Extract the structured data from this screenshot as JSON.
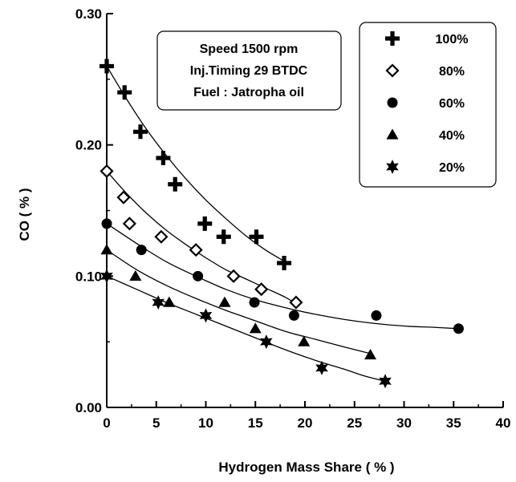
{
  "chart_data": {
    "type": "scatter",
    "xlabel": "Hydrogen Mass Share ( % )",
    "ylabel": "CO ( % )",
    "xlim": [
      0,
      40
    ],
    "ylim": [
      0,
      0.3
    ],
    "x_ticks": [
      "0",
      "5",
      "10",
      "15",
      "20",
      "25",
      "30",
      "35",
      "40"
    ],
    "y_ticks": [
      "0.00",
      "0.10",
      "0.20",
      "0.30"
    ],
    "grid": false,
    "legend_position": "top-right",
    "annotation_lines": [
      "Speed 1500 rpm",
      "Inj.Timing 29 BTDC",
      "Fuel : Jatropha oil"
    ],
    "series": [
      {
        "name": "100%",
        "marker": "plus",
        "x": [
          0,
          1.8,
          3.4,
          5.7,
          6.9,
          9.9,
          11.8,
          15.1,
          17.9
        ],
        "y": [
          0.26,
          0.24,
          0.21,
          0.19,
          0.17,
          0.14,
          0.13,
          0.13,
          0.11
        ],
        "fit": [
          [
            0,
            0.26
          ],
          [
            2,
            0.235
          ],
          [
            4,
            0.212
          ],
          [
            6,
            0.192
          ],
          [
            8,
            0.174
          ],
          [
            10,
            0.158
          ],
          [
            12,
            0.144
          ],
          [
            14,
            0.131
          ],
          [
            16,
            0.12
          ],
          [
            18,
            0.111
          ]
        ]
      },
      {
        "name": "80%",
        "marker": "diamond-open",
        "x": [
          0,
          1.7,
          2.3,
          5.5,
          9.0,
          12.8,
          15.6,
          19.1
        ],
        "y": [
          0.18,
          0.16,
          0.14,
          0.13,
          0.12,
          0.1,
          0.09,
          0.08
        ],
        "fit": [
          [
            0,
            0.18
          ],
          [
            2,
            0.163
          ],
          [
            4,
            0.148
          ],
          [
            6,
            0.135
          ],
          [
            8,
            0.124
          ],
          [
            10,
            0.114
          ],
          [
            12,
            0.105
          ],
          [
            14,
            0.098
          ],
          [
            16,
            0.091
          ],
          [
            18,
            0.084
          ],
          [
            19.1,
            0.079
          ]
        ]
      },
      {
        "name": "60%",
        "marker": "circle",
        "x": [
          0,
          3.5,
          9.2,
          14.9,
          18.9,
          27.2,
          35.5
        ],
        "y": [
          0.14,
          0.12,
          0.1,
          0.08,
          0.07,
          0.07,
          0.06
        ],
        "fit": [
          [
            0,
            0.14
          ],
          [
            3,
            0.125
          ],
          [
            6,
            0.111
          ],
          [
            9,
            0.1
          ],
          [
            12,
            0.09
          ],
          [
            15,
            0.082
          ],
          [
            18,
            0.076
          ],
          [
            21,
            0.071
          ],
          [
            24,
            0.067
          ],
          [
            27,
            0.064
          ],
          [
            30,
            0.062
          ],
          [
            33,
            0.061
          ],
          [
            35.5,
            0.06
          ]
        ]
      },
      {
        "name": "40%",
        "marker": "triangle",
        "x": [
          0,
          2.9,
          6.3,
          11.9,
          15.0,
          19.9,
          26.6
        ],
        "y": [
          0.12,
          0.1,
          0.08,
          0.08,
          0.06,
          0.05,
          0.04
        ],
        "fit": [
          [
            0,
            0.12
          ],
          [
            3,
            0.105
          ],
          [
            6,
            0.093
          ],
          [
            9,
            0.083
          ],
          [
            12,
            0.074
          ],
          [
            15,
            0.066
          ],
          [
            18,
            0.058
          ],
          [
            21,
            0.052
          ],
          [
            24,
            0.046
          ],
          [
            26.6,
            0.041
          ]
        ]
      },
      {
        "name": "20%",
        "marker": "star",
        "x": [
          0,
          5.2,
          10.0,
          16.1,
          21.7,
          28.1
        ],
        "y": [
          0.1,
          0.08,
          0.07,
          0.05,
          0.03,
          0.02
        ],
        "fit": [
          [
            0,
            0.1
          ],
          [
            3,
            0.09
          ],
          [
            6,
            0.08
          ],
          [
            9,
            0.071
          ],
          [
            12,
            0.062
          ],
          [
            15,
            0.053
          ],
          [
            18,
            0.044
          ],
          [
            21,
            0.036
          ],
          [
            24,
            0.029
          ],
          [
            26,
            0.024
          ],
          [
            28.1,
            0.02
          ]
        ]
      }
    ]
  }
}
